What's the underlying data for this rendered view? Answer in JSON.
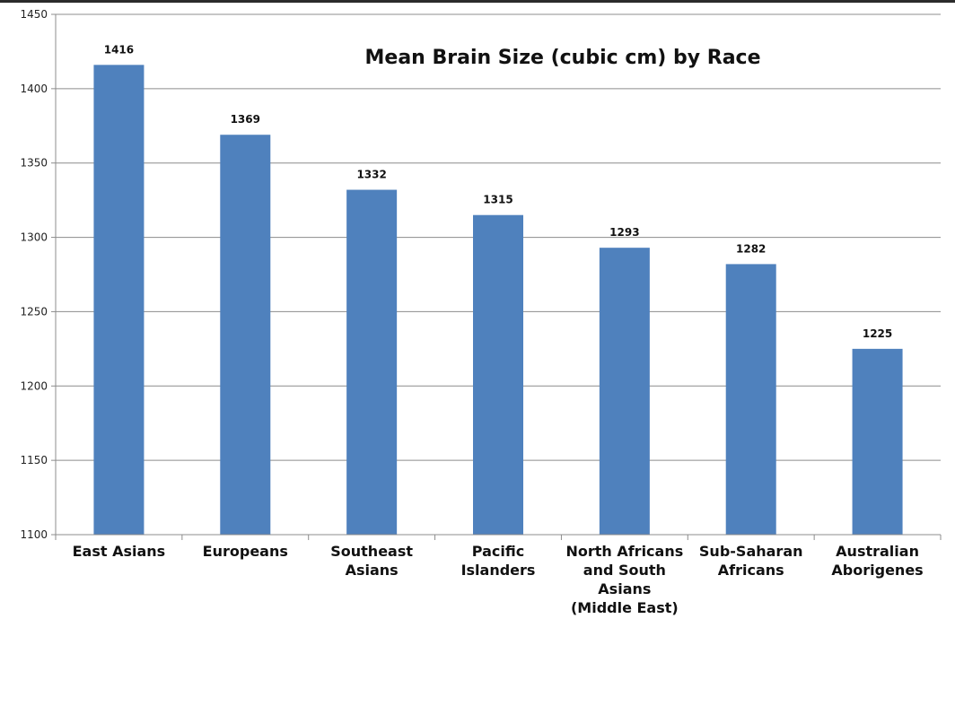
{
  "chart_data": {
    "type": "bar",
    "title": "Mean Brain Size (cubic cm) by Race",
    "xlabel": "",
    "ylabel": "",
    "categories": [
      [
        "East Asians"
      ],
      [
        "Europeans"
      ],
      [
        "Southeast",
        "Asians"
      ],
      [
        "Pacific",
        "Islanders"
      ],
      [
        "North Africans",
        "and South",
        "Asians",
        "(Middle East)"
      ],
      [
        "Sub-Saharan",
        "Africans"
      ],
      [
        "Australian",
        "Aborigenes"
      ]
    ],
    "values": [
      1416,
      1369,
      1332,
      1315,
      1293,
      1282,
      1225
    ],
    "ylim": [
      1100,
      1450
    ],
    "yticks": [
      1100,
      1150,
      1200,
      1250,
      1300,
      1350,
      1400,
      1450
    ],
    "grid": true,
    "legend": "none",
    "colors": {
      "bar": "#4f81bd",
      "grid": "#8c8c8c",
      "axis": "#8c8c8c"
    }
  }
}
